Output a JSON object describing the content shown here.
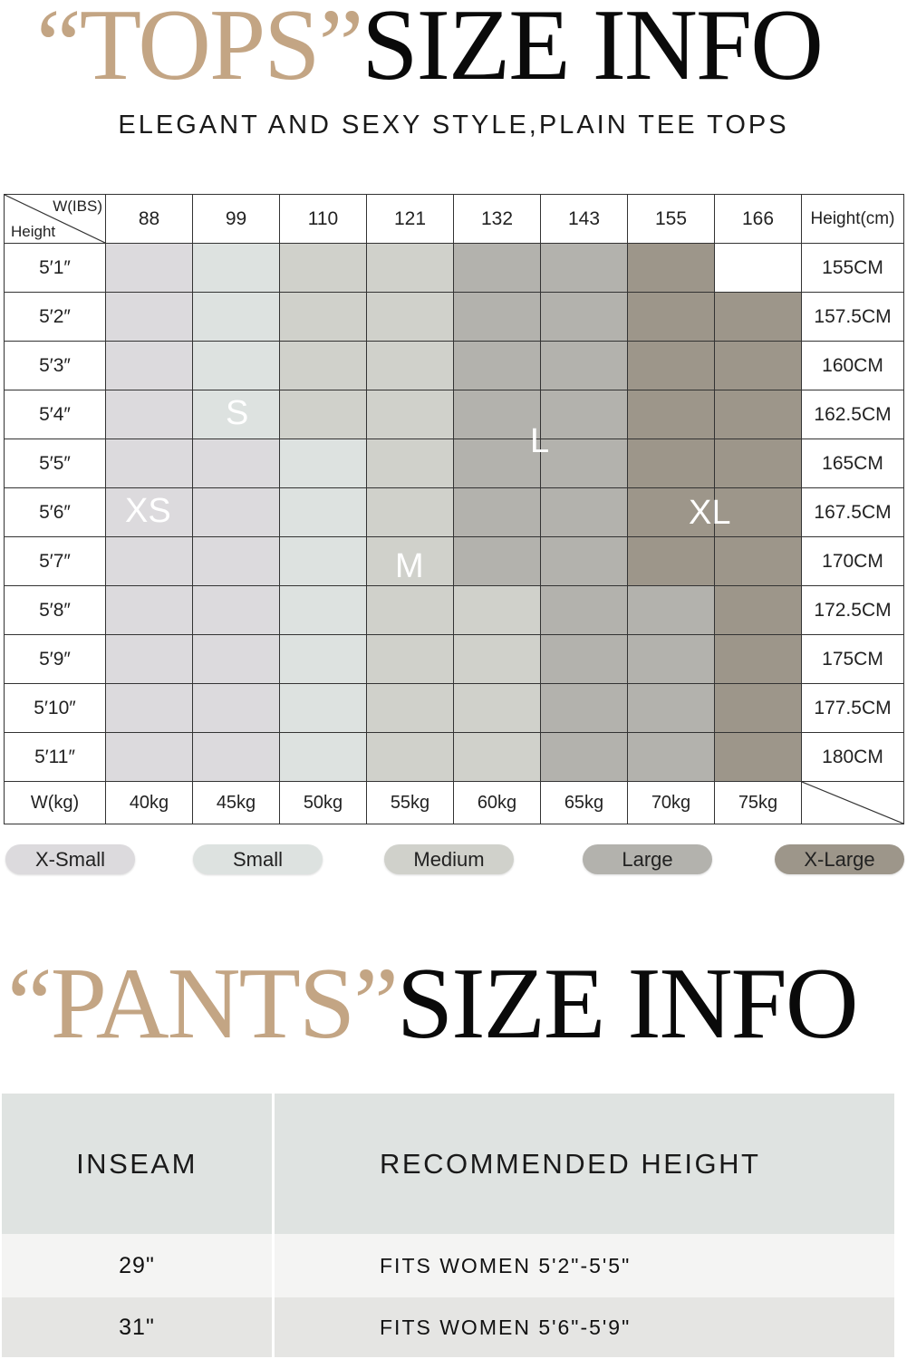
{
  "tops": {
    "title_quoted": "“TOPS”",
    "title_rest": "SIZE INFO",
    "subtitle": "ELEGANT AND SEXY STYLE,PLAIN TEE TOPS",
    "corner_weight_label": "W(IBS)",
    "corner_height_label": "Height",
    "weights_lbs": [
      "88",
      "99",
      "110",
      "121",
      "132",
      "143",
      "155",
      "166"
    ],
    "height_cm_header": "Height(cm)",
    "rows": [
      {
        "height": "5′1″",
        "cm": "155CM",
        "sizes": [
          "XS",
          "S",
          "M",
          "M",
          "L",
          "L",
          "XL",
          ""
        ]
      },
      {
        "height": "5′2″",
        "cm": "157.5CM",
        "sizes": [
          "XS",
          "S",
          "M",
          "M",
          "L",
          "L",
          "XL",
          "XL"
        ]
      },
      {
        "height": "5′3″",
        "cm": "160CM",
        "sizes": [
          "XS",
          "S",
          "M",
          "M",
          "L",
          "L",
          "XL",
          "XL"
        ]
      },
      {
        "height": "5′4″",
        "cm": "162.5CM",
        "sizes": [
          "XS",
          "S",
          "M",
          "M",
          "L",
          "L",
          "XL",
          "XL"
        ]
      },
      {
        "height": "5′5″",
        "cm": "165CM",
        "sizes": [
          "XS",
          "XS",
          "S",
          "M",
          "L",
          "L",
          "XL",
          "XL"
        ]
      },
      {
        "height": "5′6″",
        "cm": "167.5CM",
        "sizes": [
          "XS",
          "XS",
          "S",
          "M",
          "L",
          "L",
          "XL",
          "XL"
        ]
      },
      {
        "height": "5′7″",
        "cm": "170CM",
        "sizes": [
          "XS",
          "XS",
          "S",
          "M",
          "L",
          "L",
          "XL",
          "XL"
        ]
      },
      {
        "height": "5′8″",
        "cm": "172.5CM",
        "sizes": [
          "XS",
          "XS",
          "S",
          "M",
          "M",
          "L",
          "L",
          "XL"
        ]
      },
      {
        "height": "5′9″",
        "cm": "175CM",
        "sizes": [
          "XS",
          "XS",
          "S",
          "M",
          "M",
          "L",
          "L",
          "XL"
        ]
      },
      {
        "height": "5′10″",
        "cm": "177.5CM",
        "sizes": [
          "XS",
          "XS",
          "S",
          "M",
          "M",
          "L",
          "L",
          "XL"
        ]
      },
      {
        "height": "5′11″",
        "cm": "180CM",
        "sizes": [
          "XS",
          "XS",
          "S",
          "M",
          "M",
          "L",
          "L",
          "XL"
        ]
      }
    ],
    "kg_row_label": "W(kg)",
    "weights_kg": [
      "40kg",
      "45kg",
      "50kg",
      "55kg",
      "60kg",
      "65kg",
      "70kg",
      "75kg"
    ],
    "zone_labels": {
      "XS": "XS",
      "S": "S",
      "M": "M",
      "L": "L",
      "XL": "XL"
    },
    "size_colors": {
      "XS": "#dcdadd",
      "S": "#dde2e0",
      "M": "#d0d1cb",
      "L": "#b3b2ad",
      "XL": "#9d968a"
    },
    "legend": [
      {
        "key": "XS",
        "label": "X-Small"
      },
      {
        "key": "S",
        "label": "Small"
      },
      {
        "key": "M",
        "label": "Medium"
      },
      {
        "key": "L",
        "label": "Large"
      },
      {
        "key": "XL",
        "label": "X-Large"
      }
    ]
  },
  "pants": {
    "title_quoted": "“PANTS”",
    "title_rest": "SIZE INFO",
    "headers": [
      "INSEAM",
      "RECOMMENDED HEIGHT"
    ],
    "rows": [
      {
        "inseam": "29\"",
        "height": "FITS WOMEN 5'2\"-5'5\""
      },
      {
        "inseam": "31\"",
        "height": "FITS WOMEN 5'6\"-5'9\""
      }
    ]
  },
  "colors": {
    "title_accent": "#c3a584",
    "title_dark": "#0a0a0a"
  }
}
